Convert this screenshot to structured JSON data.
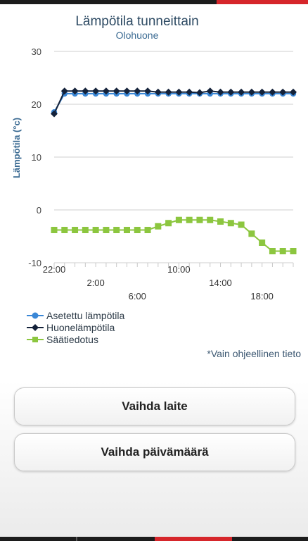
{
  "chart": {
    "title": "Lämpötila tunneittain",
    "subtitle": "Olohuone",
    "note": "*Vain ohjeellinen tieto"
  },
  "buttons": {
    "change_device": "Vaihda laite",
    "change_date": "Vaihda päivämäärä"
  },
  "colors": {
    "setpoint": "#3a87d6",
    "room": "#14223a",
    "weather": "#8cc63f",
    "accent": "#d6262b"
  },
  "chart_data": {
    "type": "line",
    "title": "Lämpötila tunneittain",
    "subtitle": "Olohuone",
    "xlabel": "",
    "ylabel": "Lämpötila (°c)",
    "ylim": [
      -10,
      30
    ],
    "yticks": [
      -10,
      0,
      10,
      20,
      30
    ],
    "x": [
      0,
      1,
      2,
      3,
      4,
      5,
      6,
      7,
      8,
      9,
      10,
      11,
      12,
      13,
      14,
      15,
      16,
      17,
      18,
      19,
      20,
      21,
      22,
      23
    ],
    "xticks": [
      {
        "x": 0,
        "label": "22:00",
        "row": 0
      },
      {
        "x": 4,
        "label": "2:00",
        "row": 1
      },
      {
        "x": 8,
        "label": "6:00",
        "row": 2
      },
      {
        "x": 12,
        "label": "10:00",
        "row": 0
      },
      {
        "x": 16,
        "label": "14:00",
        "row": 1
      },
      {
        "x": 20,
        "label": "18:00",
        "row": 2
      }
    ],
    "grid": true,
    "legend_position": "bottom-left",
    "series": [
      {
        "name": "Asetettu lämpötila",
        "marker": "circle",
        "color": "#3a87d6",
        "values": [
          18.5,
          22,
          22,
          22,
          22,
          22,
          22,
          22,
          22,
          22,
          22,
          22,
          22,
          22,
          22,
          22,
          22,
          22,
          22,
          22,
          22,
          22,
          22,
          22
        ]
      },
      {
        "name": "Huonelämpötila",
        "marker": "diamond",
        "color": "#14223a",
        "values": [
          18.2,
          22.5,
          22.5,
          22.5,
          22.5,
          22.5,
          22.5,
          22.5,
          22.5,
          22.5,
          22.3,
          22.3,
          22.3,
          22.3,
          22.2,
          22.5,
          22.3,
          22.3,
          22.3,
          22.3,
          22.3,
          22.3,
          22.3,
          22.3
        ]
      },
      {
        "name": "Säätiedotus",
        "marker": "square",
        "color": "#8cc63f",
        "values": [
          -3.8,
          -3.8,
          -3.8,
          -3.8,
          -3.8,
          -3.8,
          -3.8,
          -3.8,
          -3.8,
          -3.8,
          -3.1,
          -2.5,
          -1.9,
          -1.9,
          -1.9,
          -1.9,
          -2.2,
          -2.5,
          -2.8,
          -4.5,
          -6.2,
          -7.8,
          -7.8,
          -7.8
        ]
      }
    ]
  }
}
